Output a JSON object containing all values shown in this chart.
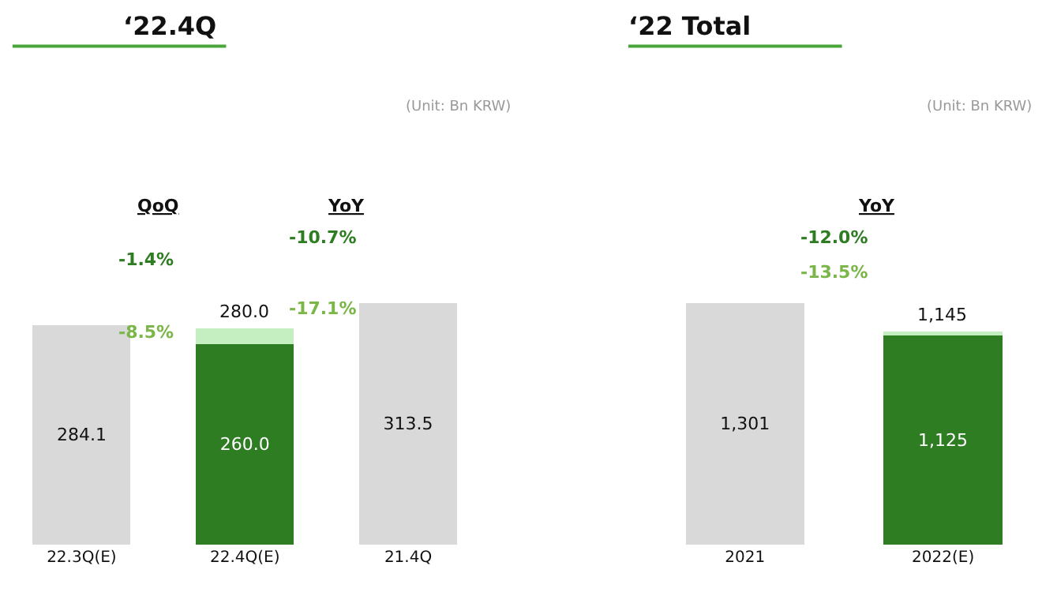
{
  "chart_data": [
    {
      "type": "bar",
      "title": "‘22.4Q",
      "stacked": true,
      "categories": [
        "22.3Q(E)",
        "22.4Q(E)",
        "21.4Q"
      ],
      "series": [
        {
          "color": "#d9d9d9",
          "values": [
            284.1,
            null,
            313.5
          ],
          "value_labels": [
            "284.1",
            null,
            "313.5"
          ]
        },
        {
          "color": "#2e7d23",
          "values": [
            null,
            260.0,
            null
          ],
          "value_labels": [
            null,
            "260.0",
            null
          ]
        },
        {
          "color": "#c6efc1",
          "values": [
            null,
            20.0,
            null
          ]
        }
      ],
      "totals": [
        null,
        "280.0",
        null
      ],
      "annotations": [
        "(Unit: Bn KRW)",
        "QoQ",
        "YoY",
        "-1.4%",
        "-8.5%",
        "-10.7%",
        "-17.1%"
      ]
    },
    {
      "type": "bar",
      "title": "‘22 Total",
      "stacked": true,
      "categories": [
        "2021",
        "2022(E)"
      ],
      "series": [
        {
          "color": "#d9d9d9",
          "values": [
            1301,
            null
          ],
          "value_labels": [
            "1,301",
            null
          ]
        },
        {
          "color": "#2e7d23",
          "values": [
            null,
            1125
          ],
          "value_labels": [
            null,
            "1,125"
          ]
        },
        {
          "color": "#c6efc1",
          "values": [
            null,
            20
          ]
        }
      ],
      "totals": [
        null,
        "1,145"
      ],
      "annotations": [
        "(Unit: Bn KRW)",
        "YoY",
        "-12.0%",
        "-13.5%"
      ]
    }
  ]
}
